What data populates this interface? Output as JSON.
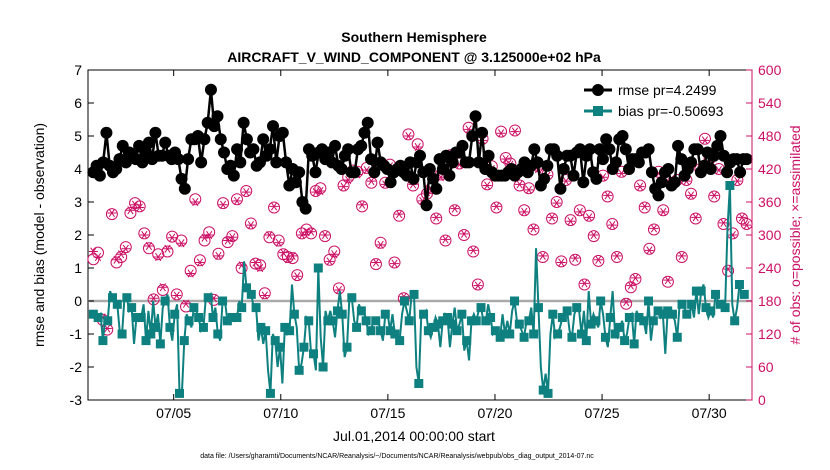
{
  "chart_data": {
    "type": "line",
    "title": "Southern Hemisphere",
    "subtitle": "AIRCRAFT_V_WIND_COMPONENT @ 3.125000e+02 hPa",
    "ylabel_left": "rmse and bias (model - observation)",
    "ylabel_right": "# of obs: o=possible; ×=assimilated",
    "xlabel": "Jul.01,2014 00:00:00 start",
    "footnote": "data file: /Users/gharamti/Documents/NCAR/Reanalysis/~/Documents/NCAR/Reanalysis/webpub/obs_diag_output_2014-07.nc",
    "ylim_left": [
      -3,
      7
    ],
    "ylim_right": [
      0,
      600
    ],
    "xlim": [
      1.0,
      32.0
    ],
    "yticks_left": [
      "-3",
      "-2",
      "-1",
      "0",
      "1",
      "2",
      "3",
      "4",
      "5",
      "6",
      "7"
    ],
    "yticks_right": [
      "0",
      "60",
      "120",
      "180",
      "240",
      "300",
      "360",
      "420",
      "480",
      "540",
      "600"
    ],
    "xticks": [
      {
        "value": 5,
        "label": "07/05"
      },
      {
        "value": 10,
        "label": "07/10"
      },
      {
        "value": 15,
        "label": "07/15"
      },
      {
        "value": 20,
        "label": "07/20"
      },
      {
        "value": 25,
        "label": "07/25"
      },
      {
        "value": 30,
        "label": "07/30"
      }
    ],
    "legend": [
      {
        "name": "rmse pr=4.2499",
        "color": "#000000",
        "marker": "circle"
      },
      {
        "name": "bias pr=-0.50693",
        "color": "#0f8080",
        "marker": "square"
      }
    ],
    "zero_line_color": "#aaaaaa",
    "colors": {
      "rmse": "#000000",
      "bias": "#0f8080",
      "obs": "#cc1166"
    },
    "x_start": 1.25,
    "x_step": 0.25,
    "series": [
      {
        "name": "rmse",
        "values": [
          3.9,
          4.1,
          3.8,
          4.2,
          5.1,
          4.1,
          3.9,
          4.0,
          4.3,
          4.7,
          4.2,
          4.5,
          4.4,
          4.3,
          4.7,
          4.2,
          4.5,
          4.8,
          4.3,
          5.1,
          4.4,
          4.4,
          4.8,
          4.4,
          4.3,
          4.5,
          4.3,
          3.7,
          3.4,
          4.3,
          4.9,
          4.9,
          5.0,
          4.2,
          4.9,
          5.4,
          6.4,
          5.3,
          5.6,
          4.9,
          4.5,
          4.0,
          4.1,
          3.8,
          4.6,
          4.2,
          5.4,
          4.9,
          4.5,
          4.6,
          4.1,
          4.2,
          4.9,
          4.4,
          4.6,
          5.3,
          4.2,
          5.0,
          5.1,
          4.2,
          3.5,
          4.0,
          3.6,
          3.9,
          3.0,
          2.8,
          4.6,
          4.4,
          3.9,
          4.5,
          4.6,
          4.3,
          4.5,
          4.2,
          4.7,
          4.1,
          4.0,
          4.4,
          4.6,
          3.9,
          3.9,
          4.6,
          4.7,
          5.1,
          5.4,
          4.3,
          3.9,
          4.8,
          4.2,
          4.1,
          4.0,
          3.6,
          3.9,
          4.0,
          4.1,
          3.9,
          3.8,
          4.2,
          3.7,
          4.2,
          4.4,
          3.9,
          2.9,
          4.0,
          3.7,
          3.4,
          4.3,
          4.0,
          4.4,
          3.8,
          4.2,
          4.5,
          4.5,
          4.7,
          4.2,
          4.2,
          5.0,
          5.6,
          4.2,
          5.1,
          4.0,
          4.4,
          3.9,
          3.8,
          3.8,
          3.8,
          3.8,
          3.9,
          4.0,
          3.8,
          3.9,
          4.0,
          4.2,
          3.9,
          4.1,
          4.6,
          4.2,
          3.5,
          3.7,
          4.1,
          4.6,
          4.6,
          4.4,
          3.4,
          4.0,
          4.4,
          4.4,
          3.8,
          4.5,
          4.6,
          3.6,
          4.4,
          4.6,
          3.9,
          3.7,
          4.6,
          4.3,
          4.9,
          4.6,
          4.0,
          4.2,
          4.9,
          5.0,
          4.6,
          4.0,
          4.3,
          4.3,
          4.2,
          4.5,
          4.5,
          4.6,
          3.9,
          3.4,
          3.2,
          3.6,
          3.9,
          4.0,
          3.5,
          3.6,
          4.7,
          4.3,
          3.8,
          4.0,
          4.2,
          4.6,
          4.6,
          3.9,
          4.1,
          4.5,
          4.0,
          4.4,
          4.7,
          5.0,
          4.4,
          3.9,
          4.2,
          4.3,
          4.3,
          3.9,
          4.3,
          4.3
        ]
      },
      {
        "name": "bias",
        "values": [
          -0.4,
          -0.5,
          -0.5,
          -0.4,
          -1.2,
          -0.5,
          -0.6,
          0.3,
          0.1,
          -0.1,
          -0.1,
          -0.9,
          -1.0,
          0.1,
          0.1,
          -0.3,
          -0.2,
          -1.3,
          -0.5,
          -0.6,
          -0.5,
          -0.1,
          -1.2,
          -0.3,
          -1.0,
          0.0,
          -0.8,
          -0.4,
          -1.3,
          -0.2,
          0.0,
          0.2,
          -0.8,
          -1.2,
          -0.4,
          -0.1,
          -2.8,
          -2.8,
          -1.2,
          -0.4,
          -0.6,
          -0.8,
          -0.2,
          -0.3,
          -0.5,
          -0.9,
          -0.8,
          0.1,
          0.1,
          0.2,
          -0.5,
          -0.2,
          -1.0,
          -1.2,
          0.0,
          0.0,
          -0.6,
          -0.6,
          -0.5,
          -0.6,
          -0.5,
          0.0,
          -0.2,
          1.2,
          0.4,
          0.3,
          0.2,
          -0.2,
          -0.2,
          -1.2,
          -0.8,
          -1.3,
          -0.9,
          -2.1,
          -2.8,
          -1.0,
          -1.2,
          -2.0,
          -1.4,
          -2.5,
          -0.8,
          -1.0,
          -0.9,
          0.5,
          -0.4,
          -0.8,
          -2.1,
          -1.9,
          -1.4,
          -0.5,
          -0.6,
          -1.6,
          -1.6,
          -2.1,
          1.0,
          -1.1,
          -2.0,
          -0.3,
          -0.6,
          -0.3,
          -0.6,
          -1.1,
          -0.3,
          0.3,
          -0.4,
          -1.7,
          -1.4,
          0.1,
          0.1,
          -0.6,
          -0.8,
          -0.1,
          -0.3,
          -0.3,
          -0.6,
          -1.0,
          -0.9,
          -0.6,
          -0.6,
          -0.6,
          -0.9,
          -1.2,
          -0.4,
          -0.4,
          -0.9,
          -0.4,
          -1.0,
          -1.0,
          -1.2,
          -0.4,
          0.0,
          -0.3,
          -0.6,
          0.2,
          0.2,
          -2.0,
          -2.5,
          -0.5,
          -0.4,
          -0.3,
          -0.9,
          -1.1,
          -0.8,
          -0.5,
          -0.7,
          -1.4,
          -0.6,
          -0.4,
          -0.5,
          -1.4,
          -0.7,
          -0.2,
          -0.9,
          -0.7,
          -0.4,
          -1.5,
          -1.2,
          -1.8,
          -0.6,
          -0.4,
          -0.6,
          -0.3,
          -0.2,
          -0.6,
          -0.6,
          -0.1,
          -0.5,
          -1.0,
          -0.9,
          -1.0,
          -1.1,
          -0.4,
          -1.0,
          -0.6,
          -1.0,
          -0.3,
          0.0,
          -0.6,
          -0.7,
          -0.9,
          -1.1,
          -0.6,
          -0.6,
          -0.2,
          -1.0,
          1.6,
          -0.2,
          -2.0,
          -2.7,
          -2.2,
          -2.8,
          -1.0,
          -0.4,
          -1.1,
          -1.0,
          -0.8,
          -0.5,
          -0.4,
          -0.3,
          -0.9,
          -1.1,
          -0.4,
          -0.2,
          -0.3,
          -1.0,
          -0.3,
          -1.2,
          0.3,
          -0.7,
          -0.4,
          -0.6,
          -0.8,
          0.0,
          -0.4,
          -1.1,
          -1.4,
          -0.5,
          0.3,
          -1.0,
          -1.1,
          -0.8,
          -0.6,
          -1.2,
          -1.0,
          -0.5,
          -0.4,
          -1.3,
          -0.3,
          -0.5,
          -0.5,
          -0.6,
          -1.0,
          0.0,
          -1.2,
          -0.6,
          -0.3,
          -0.3,
          -0.5,
          -0.4,
          -1.6,
          -0.3,
          -0.4,
          -0.4,
          -0.6,
          -1.1,
          -0.1,
          -0.1,
          -0.2,
          -0.4,
          -0.4,
          -0.1,
          -0.5,
          0.3,
          -0.4,
          0.3,
          0.5,
          -0.2,
          -0.5,
          -0.3,
          -0.5,
          0.2,
          0.0,
          -0.1,
          -0.1,
          -0.2,
          2.2,
          3.5,
          -0.1,
          -0.6,
          -0.2,
          0.5,
          0.2,
          0.2,
          0.3
        ]
      },
      {
        "name": "obs_possible",
        "values": [
          256,
          268,
          146,
          128,
          338,
          250,
          260,
          278,
          340,
          358,
          352,
          303,
          276,
          183,
          265,
          200,
          270,
          297,
          192,
          290,
          170,
          235,
          365,
          254,
          290,
          305,
          182,
          266,
          358,
          287,
          298,
          365,
          240,
          380,
          321,
          248,
          245,
          194,
          296,
          350,
          290,
          265,
          260,
          258,
          227,
          303,
          310,
          303,
          380,
          385,
          298,
          255,
          270,
          203,
          390,
          405,
          417,
          415,
          352,
          422,
          395,
          247,
          286,
          395,
          428,
          250,
          335,
          185,
          483,
          390,
          465,
          365,
          375,
          385,
          330,
          410,
          290,
          445,
          345,
          430,
          300,
          495,
          270,
          210,
          475,
          392,
          425,
          350,
          488,
          440,
          430,
          490,
          390,
          345,
          385,
          310,
          425,
          260,
          410,
          330,
          360,
          252,
          400,
          327,
          255,
          345,
          210,
          335,
          298,
          253,
          408,
          370,
          320,
          260,
          415,
          175,
          205,
          220,
          390,
          350,
          275,
          310,
          415,
          345,
          215,
          395,
          400,
          260,
          400,
          375,
          330,
          420,
          475,
          438,
          370,
          420,
          320,
          235,
          303,
          400,
          330,
          320
        ]
      },
      {
        "name": "obs_assimilated",
        "values": [
          270,
          260,
          150,
          130,
          340,
          255,
          265,
          275,
          345,
          355,
          350,
          300,
          280,
          185,
          260,
          205,
          275,
          295,
          190,
          285,
          175,
          230,
          360,
          250,
          295,
          300,
          185,
          262,
          355,
          290,
          296,
          362,
          245,
          378,
          318,
          250,
          240,
          190,
          300,
          352,
          286,
          268,
          256,
          262,
          225,
          300,
          305,
          306,
          378,
          380,
          300,
          252,
          265,
          200,
          388,
          400,
          412,
          410,
          355,
          418,
          398,
          250,
          282,
          392,
          425,
          248,
          338,
          188,
          480,
          392,
          460,
          362,
          378,
          382,
          332,
          405,
          292,
          442,
          348,
          428,
          302,
          492,
          272,
          208,
          472,
          390,
          420,
          352,
          485,
          438,
          428,
          488,
          392,
          342,
          382,
          312,
          420,
          262,
          408,
          332,
          358,
          250,
          398,
          325,
          258,
          342,
          212,
          332,
          300,
          255,
          405,
          372,
          318,
          262,
          412,
          178,
          208,
          222,
          388,
          352,
          272,
          312,
          412,
          342,
          218,
          392,
          398,
          262,
          398,
          372,
          332,
          418,
          472,
          435,
          372,
          418,
          322,
          238,
          300,
          398,
          332,
          318
        ]
      }
    ]
  }
}
